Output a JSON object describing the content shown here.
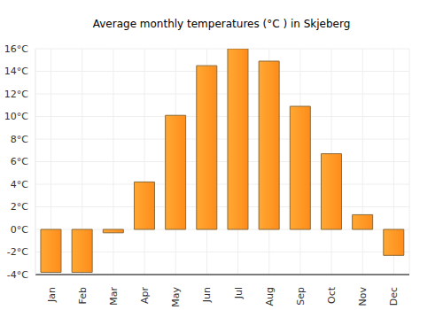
{
  "chart_data": {
    "type": "bar",
    "title": "Average monthly temperatures (°C ) in Skjeberg",
    "categories": [
      "Jan",
      "Feb",
      "Mar",
      "Apr",
      "May",
      "Jun",
      "Jul",
      "Aug",
      "Sep",
      "Oct",
      "Nov",
      "Dec"
    ],
    "values": [
      -3.8,
      -3.8,
      -0.3,
      4.2,
      10.1,
      14.5,
      16.0,
      14.9,
      10.9,
      6.7,
      1.3,
      -2.3
    ],
    "color": "#ffa833",
    "ylim": [
      -4,
      16
    ],
    "yticks": [
      {
        "value": -4,
        "label": "-4°C"
      },
      {
        "value": -2,
        "label": "-2°C"
      },
      {
        "value": 0,
        "label": "0°C"
      },
      {
        "value": 2,
        "label": "2°C"
      },
      {
        "value": 4,
        "label": "4°C"
      },
      {
        "value": 6,
        "label": "6°C"
      },
      {
        "value": 8,
        "label": "8°C"
      },
      {
        "value": 10,
        "label": "10°C"
      },
      {
        "value": 12,
        "label": "12°C"
      },
      {
        "value": 14,
        "label": "14°C"
      },
      {
        "value": 16,
        "label": "16°C"
      }
    ],
    "grid": true
  }
}
